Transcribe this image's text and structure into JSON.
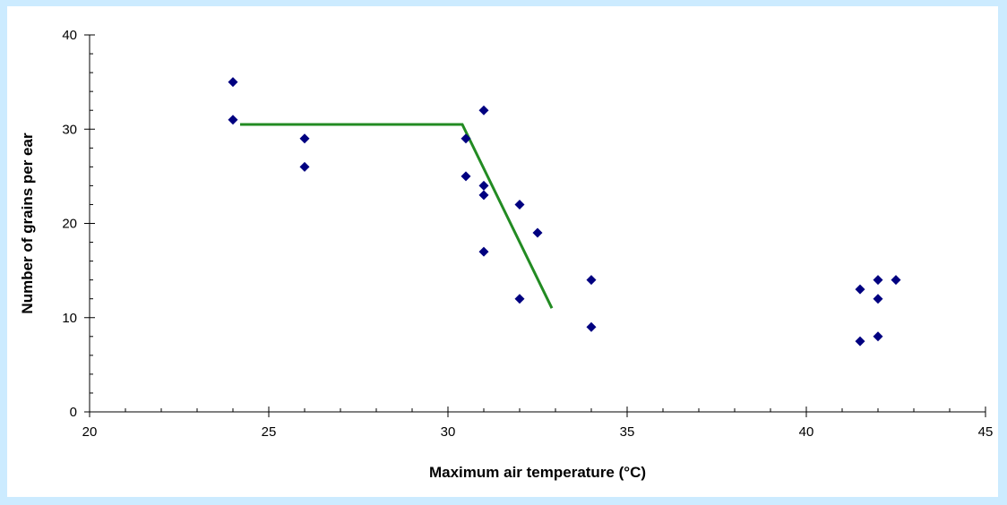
{
  "colors": {
    "background": "#ccebff",
    "plot_area": "#ffffff",
    "axis": "#000000",
    "marker": "#000080",
    "fit_line": "#228b22"
  },
  "chart_data": {
    "type": "scatter",
    "xlabel": "Maximum air temperature (°C)",
    "ylabel": "Number of grains per ear",
    "xlim": [
      20,
      45
    ],
    "ylim": [
      0,
      40
    ],
    "x_ticks": [
      20,
      25,
      30,
      35,
      40,
      45
    ],
    "y_ticks": [
      0,
      10,
      20,
      30,
      40
    ],
    "x_minor_step": 1,
    "y_minor_step": 2,
    "grid": false,
    "legend": "none",
    "series": [
      {
        "marker": "diamond",
        "points": [
          {
            "x": 24,
            "y": 35
          },
          {
            "x": 24,
            "y": 31
          },
          {
            "x": 26,
            "y": 29
          },
          {
            "x": 26,
            "y": 26
          },
          {
            "x": 30.5,
            "y": 29
          },
          {
            "x": 30.5,
            "y": 25
          },
          {
            "x": 31,
            "y": 32
          },
          {
            "x": 31,
            "y": 24
          },
          {
            "x": 31,
            "y": 23
          },
          {
            "x": 31,
            "y": 17
          },
          {
            "x": 32,
            "y": 22
          },
          {
            "x": 32,
            "y": 12
          },
          {
            "x": 32.5,
            "y": 19
          },
          {
            "x": 34,
            "y": 14
          },
          {
            "x": 34,
            "y": 9
          },
          {
            "x": 41.5,
            "y": 13
          },
          {
            "x": 41.5,
            "y": 7.5
          },
          {
            "x": 42,
            "y": 14
          },
          {
            "x": 42,
            "y": 12
          },
          {
            "x": 42,
            "y": 8
          },
          {
            "x": 42.5,
            "y": 14
          }
        ]
      }
    ],
    "fit_line": {
      "points": [
        {
          "x": 24.2,
          "y": 30.5
        },
        {
          "x": 30.4,
          "y": 30.5
        },
        {
          "x": 32.9,
          "y": 11
        }
      ]
    }
  }
}
